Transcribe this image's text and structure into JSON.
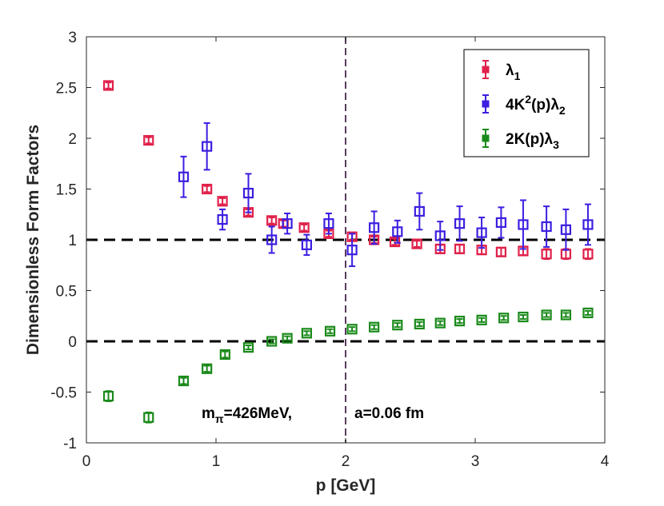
{
  "chart_data": {
    "type": "scatter",
    "title": "",
    "xlabel": "p [GeV]",
    "ylabel": "Dimensionless Form Factors",
    "xlim": [
      0,
      4
    ],
    "ylim": [
      -1,
      3
    ],
    "xticks": [
      0,
      1,
      2,
      3,
      4
    ],
    "xtick_labels": [
      "0",
      "1",
      "2",
      "3",
      "4"
    ],
    "yticks": [
      -1,
      -0.5,
      0,
      0.5,
      1,
      1.5,
      2,
      2.5,
      3
    ],
    "ytick_labels": [
      "-1",
      "-0.5",
      "0",
      "0.5",
      "1",
      "1.5",
      "2",
      "2.5",
      "3"
    ],
    "grid": false,
    "legend_position": "top-right",
    "reference_lines": [
      {
        "orientation": "horizontal",
        "value": 1,
        "style": "dashed",
        "color": "#000000"
      },
      {
        "orientation": "horizontal",
        "value": 0,
        "style": "dashed",
        "color": "#000000"
      },
      {
        "orientation": "vertical",
        "value": 2,
        "style": "dashed",
        "color": "#5b3a5e"
      }
    ],
    "annotations": [
      {
        "text_main": "m",
        "text_sub": "π",
        "text_rest": "=426MeV,",
        "x": 0.9,
        "y": -0.7
      },
      {
        "text": "a=0.06 fm",
        "x": 2.35,
        "y": -0.7
      }
    ],
    "series": [
      {
        "name": "λ1",
        "legend_main": "λ",
        "legend_sub": "1",
        "color": "#e0204a",
        "x": [
          0.17,
          0.48,
          0.93,
          1.05,
          1.25,
          1.43,
          1.52,
          1.68,
          1.87,
          2.05,
          2.22,
          2.38,
          2.55,
          2.73,
          2.88,
          3.05,
          3.2,
          3.37,
          3.55,
          3.7,
          3.87
        ],
        "y": [
          2.52,
          1.98,
          1.5,
          1.38,
          1.27,
          1.19,
          1.16,
          1.12,
          1.06,
          1.03,
          1.0,
          0.98,
          0.96,
          0.91,
          0.91,
          0.9,
          0.88,
          0.89,
          0.86,
          0.86,
          0.86
        ],
        "err": [
          0.03,
          0.03,
          0.03,
          0.03,
          0.03,
          0.03,
          0.03,
          0.03,
          0.03,
          0.03,
          0.03,
          0.03,
          0.03,
          0.04,
          0.04,
          0.04,
          0.04,
          0.04,
          0.05,
          0.05,
          0.05
        ]
      },
      {
        "name": "4K2(p)λ2",
        "legend_main": "4K",
        "legend_sup": "2",
        "legend_rest": "(p)λ",
        "legend_sub": "2",
        "color": "#3b1fe0",
        "x": [
          0.75,
          0.93,
          1.05,
          1.25,
          1.43,
          1.55,
          1.7,
          1.87,
          2.05,
          2.22,
          2.4,
          2.57,
          2.73,
          2.88,
          3.05,
          3.2,
          3.37,
          3.55,
          3.7,
          3.87
        ],
        "y": [
          1.62,
          1.92,
          1.2,
          1.46,
          1.0,
          1.16,
          0.95,
          1.16,
          0.9,
          1.12,
          1.08,
          1.28,
          1.04,
          1.16,
          1.07,
          1.17,
          1.15,
          1.13,
          1.1,
          1.15
        ],
        "err": [
          0.2,
          0.23,
          0.1,
          0.19,
          0.13,
          0.1,
          0.1,
          0.1,
          0.16,
          0.16,
          0.11,
          0.18,
          0.14,
          0.17,
          0.15,
          0.15,
          0.24,
          0.2,
          0.2,
          0.2
        ]
      },
      {
        "name": "2K(p)λ3",
        "legend_main": "2K(p)λ",
        "legend_sub": "3",
        "color": "#1a8a1a",
        "x": [
          0.17,
          0.48,
          0.75,
          0.93,
          1.07,
          1.25,
          1.43,
          1.55,
          1.7,
          1.88,
          2.05,
          2.22,
          2.4,
          2.57,
          2.73,
          2.88,
          3.05,
          3.22,
          3.37,
          3.55,
          3.7,
          3.87
        ],
        "y": [
          -0.54,
          -0.75,
          -0.39,
          -0.27,
          -0.13,
          -0.06,
          0.0,
          0.03,
          0.08,
          0.1,
          0.12,
          0.14,
          0.16,
          0.17,
          0.18,
          0.2,
          0.21,
          0.23,
          0.24,
          0.26,
          0.26,
          0.28
        ],
        "err": [
          0.05,
          0.05,
          0.03,
          0.03,
          0.03,
          0.02,
          0.02,
          0.02,
          0.02,
          0.02,
          0.02,
          0.02,
          0.02,
          0.02,
          0.02,
          0.02,
          0.02,
          0.02,
          0.02,
          0.02,
          0.02,
          0.02
        ]
      }
    ]
  }
}
